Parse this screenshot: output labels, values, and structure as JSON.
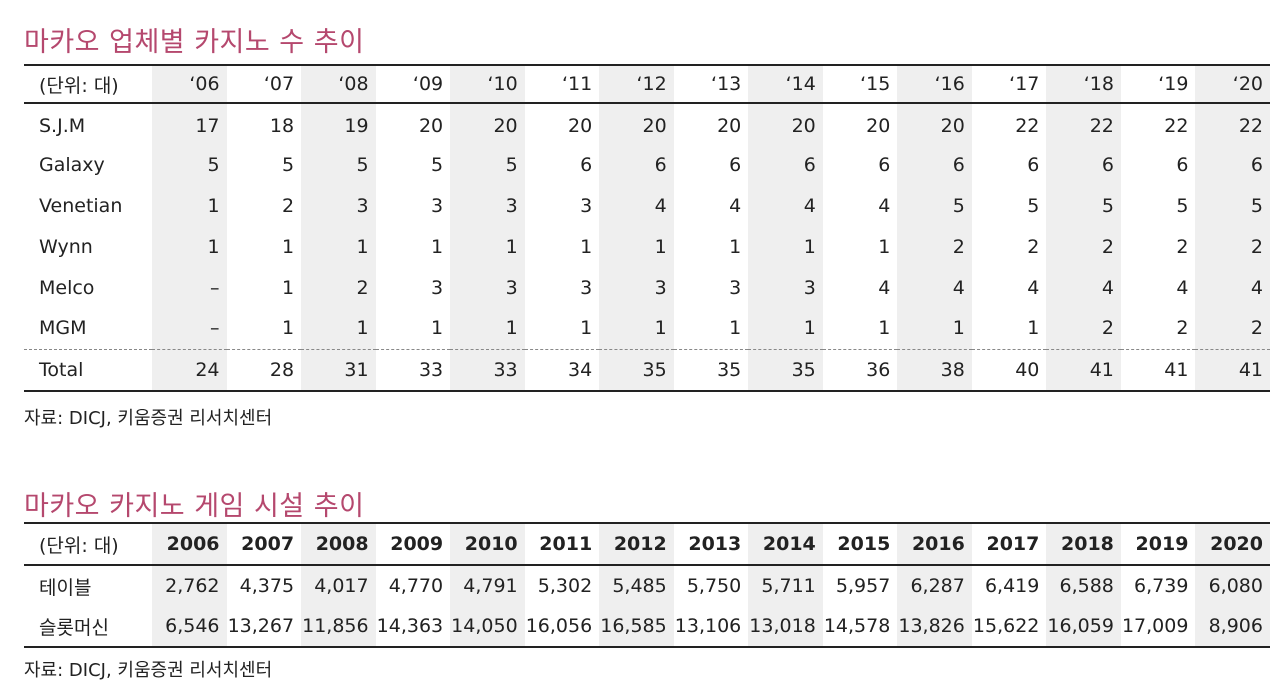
{
  "section1": {
    "title": "마카오 업체별 카지노 수 추이",
    "unit_label": "(단위: 대)",
    "years": [
      "‘06",
      "‘07",
      "‘08",
      "‘09",
      "‘10",
      "‘11",
      "‘12",
      "‘13",
      "‘14",
      "‘15",
      "‘16",
      "‘17",
      "‘18",
      "‘19",
      "‘20"
    ],
    "rows": [
      {
        "name": "S.J.M",
        "values": [
          "17",
          "18",
          "19",
          "20",
          "20",
          "20",
          "20",
          "20",
          "20",
          "20",
          "20",
          "22",
          "22",
          "22",
          "22"
        ]
      },
      {
        "name": "Galaxy",
        "values": [
          "5",
          "5",
          "5",
          "5",
          "5",
          "6",
          "6",
          "6",
          "6",
          "6",
          "6",
          "6",
          "6",
          "6",
          "6"
        ]
      },
      {
        "name": "Venetian",
        "values": [
          "1",
          "2",
          "3",
          "3",
          "3",
          "3",
          "4",
          "4",
          "4",
          "4",
          "5",
          "5",
          "5",
          "5",
          "5"
        ]
      },
      {
        "name": "Wynn",
        "values": [
          "1",
          "1",
          "1",
          "1",
          "1",
          "1",
          "1",
          "1",
          "1",
          "1",
          "2",
          "2",
          "2",
          "2",
          "2"
        ]
      },
      {
        "name": "Melco",
        "values": [
          "–",
          "1",
          "2",
          "3",
          "3",
          "3",
          "3",
          "3",
          "3",
          "4",
          "4",
          "4",
          "4",
          "4",
          "4"
        ]
      },
      {
        "name": "MGM",
        "values": [
          "–",
          "1",
          "1",
          "1",
          "1",
          "1",
          "1",
          "1",
          "1",
          "1",
          "1",
          "1",
          "2",
          "2",
          "2"
        ]
      }
    ],
    "total": {
      "name": "Total",
      "values": [
        "24",
        "28",
        "31",
        "33",
        "33",
        "34",
        "35",
        "35",
        "35",
        "36",
        "38",
        "40",
        "41",
        "41",
        "41"
      ]
    },
    "source": "자료: DICJ, 키움증권 리서치센터"
  },
  "section2": {
    "title": "마카오 카지노 게임 시설 추이",
    "unit_label": "(단위: 대)",
    "years": [
      "2006",
      "2007",
      "2008",
      "2009",
      "2010",
      "2011",
      "2012",
      "2013",
      "2014",
      "2015",
      "2016",
      "2017",
      "2018",
      "2019",
      "2020"
    ],
    "rows": [
      {
        "name": "테이블",
        "values": [
          "2,762",
          "4,375",
          "4,017",
          "4,770",
          "4,791",
          "5,302",
          "5,485",
          "5,750",
          "5,711",
          "5,957",
          "6,287",
          "6,419",
          "6,588",
          "6,739",
          "6,080"
        ]
      },
      {
        "name": "슬롯머신",
        "values": [
          "6,546",
          "13,267",
          "11,856",
          "14,363",
          "14,050",
          "16,056",
          "16,585",
          "13,106",
          "13,018",
          "14,578",
          "13,826",
          "15,622",
          "16,059",
          "17,009",
          "8,906"
        ]
      }
    ],
    "source": "자료: DICJ, 키움증권 리서치센터"
  },
  "colors": {
    "title": "#b5486e",
    "shade": "#efefef",
    "rule": "#222222"
  }
}
